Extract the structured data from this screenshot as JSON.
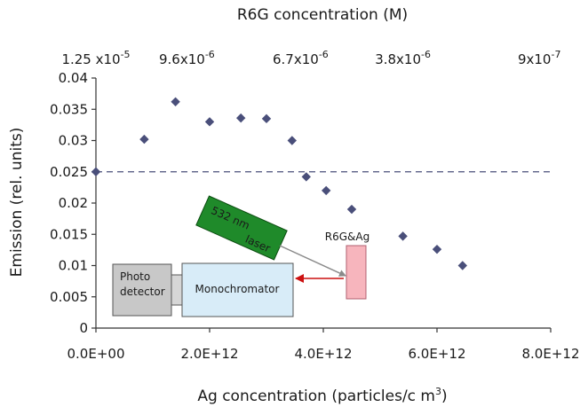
{
  "chart_data": {
    "type": "scatter",
    "xlabel": "Ag concentration (particles/c  m",
    "xlabel_superscript": "3",
    "xlabel_close": ")",
    "ylabel": "Emission (rel. units)",
    "top_axis_label": "R6G concentration (M)",
    "xlim": [
      0,
      8000000000000.0
    ],
    "ylim": [
      0,
      0.04
    ],
    "x_ticks": [
      0,
      2000000000000.0,
      4000000000000.0,
      6000000000000.0,
      8000000000000.0
    ],
    "x_tick_labels": [
      "0.0E+00",
      "2.0E+12",
      "4.0E+12",
      "6.0E+12",
      "8.0E+12"
    ],
    "y_ticks": [
      0,
      0.005,
      0.01,
      0.015,
      0.02,
      0.025,
      0.03,
      0.035,
      0.04
    ],
    "y_tick_labels": [
      "0",
      "0.005",
      "0.01",
      "0.015",
      "0.02",
      "0.025",
      "0.03",
      "0.035",
      "0.04"
    ],
    "top_ticks": [
      {
        "x": 0,
        "mantissa": "1.25 x10",
        "exponent": "-5"
      },
      {
        "x": 1600000000000.0,
        "mantissa": "9.6x10",
        "exponent": "-6"
      },
      {
        "x": 3600000000000.0,
        "mantissa": "6.7x10",
        "exponent": "-6"
      },
      {
        "x": 5400000000000.0,
        "mantissa": "3.8x10",
        "exponent": "-6"
      },
      {
        "x": 7800000000000.0,
        "mantissa": "9x10",
        "exponent": "-7"
      }
    ],
    "reference_line_y": 0.025,
    "series": [
      {
        "marker": "diamond",
        "color": "#4a4f7a",
        "points": [
          {
            "x": 0,
            "y": 0.025
          },
          {
            "x": 850000000000.0,
            "y": 0.0302
          },
          {
            "x": 1400000000000.0,
            "y": 0.0362
          },
          {
            "x": 2000000000000.0,
            "y": 0.033
          },
          {
            "x": 2550000000000.0,
            "y": 0.0336
          },
          {
            "x": 3000000000000.0,
            "y": 0.0335
          },
          {
            "x": 3450000000000.0,
            "y": 0.03
          },
          {
            "x": 3700000000000.0,
            "y": 0.0242
          },
          {
            "x": 4050000000000.0,
            "y": 0.022
          },
          {
            "x": 4500000000000.0,
            "y": 0.019
          },
          {
            "x": 5400000000000.0,
            "y": 0.0147
          },
          {
            "x": 6000000000000.0,
            "y": 0.0126
          },
          {
            "x": 6450000000000.0,
            "y": 0.01
          }
        ]
      }
    ],
    "grid": false,
    "colors": {
      "reference_line": "#4a4f7a",
      "laser_fill": "#1f8a2a",
      "sample_fill": "#f7b5bd",
      "sample_label": "#b06070",
      "mono_fill": "#d8ecf8",
      "detector_fill": "#c8c8c8",
      "beam_line": "#8a8a8a",
      "emission_arrow": "#cc1111"
    }
  },
  "inset": {
    "laser_line1": "532 nm",
    "laser_line2": "laser",
    "sample_label": "R6G&Ag",
    "monochromator_label": "Monochromator",
    "detector_line1": "Photo",
    "detector_line2": "detector"
  }
}
